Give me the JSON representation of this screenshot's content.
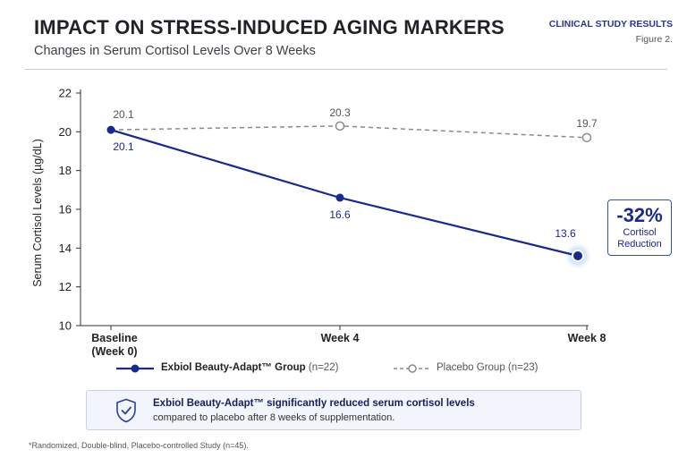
{
  "header": {
    "title": "IMPACT ON STRESS-INDUCED AGING MARKERS",
    "subtitle": "Changes in Serum Cortisol Levels Over 8 Weeks",
    "tag": "CLINICAL STUDY RESULTS",
    "figure": "Figure 2."
  },
  "chart_data": {
    "type": "line",
    "title": "IMPACT ON STRESS-INDUCED AGING MARKERS",
    "subtitle": "Changes in Serum Cortisol Levels Over 8 Weeks",
    "categories": [
      "Baseline (Week 0)",
      "Week 4",
      "Week 8"
    ],
    "category_lines": [
      [
        "Baseline",
        "(Week 0)"
      ],
      [
        "Week 4"
      ],
      [
        "Week 8"
      ]
    ],
    "xlabel": "",
    "ylabel": "Serum Cortisol Levels (µg/dL)",
    "ylim": [
      10,
      22
    ],
    "yticks": [
      10,
      12,
      14,
      16,
      18,
      20,
      22
    ],
    "grid": false,
    "legend_position": "bottom",
    "series": [
      {
        "name": "Exbiol Beauty-Adapt™ Group",
        "n_label": "(n=22)",
        "values": [
          20.1,
          16.6,
          13.6
        ],
        "color": "#1a2a8c",
        "style": "solid",
        "marker": "filled-circle"
      },
      {
        "name": "Placebo Group",
        "n_label": "(n=23)",
        "values": [
          20.1,
          20.3,
          19.7
        ],
        "color": "#8a8a8a",
        "style": "dashed",
        "marker": "open-circle"
      }
    ],
    "annotation": {
      "value": "-32%",
      "line1": "Cortisol",
      "line2": "Reduction"
    }
  },
  "summary": {
    "line1": "Exbiol Beauty-Adapt™ significantly reduced serum cortisol levels",
    "line2": "compared to placebo after 8 weeks of supplementation.",
    "icon": "shield-check-icon"
  },
  "footnote": "*Randomized, Double-blind, Placebo-controlled Study (n=45).",
  "colors": {
    "accent": "#1a2a8c",
    "placebo": "#8a8a8a",
    "callout_border": "#2f55a8",
    "note_bg": "#f2f5fb"
  }
}
